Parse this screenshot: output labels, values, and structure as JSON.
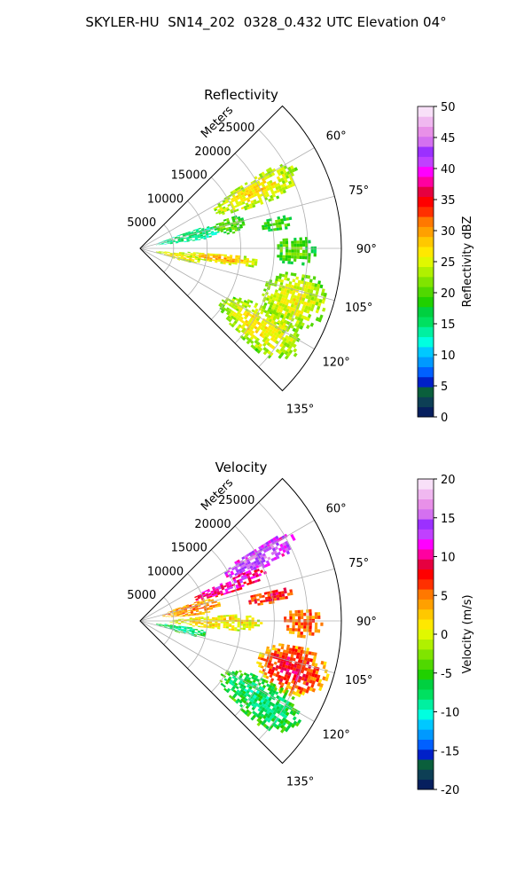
{
  "figure": {
    "title": "SKYLER-HU  SN14_202  0328_0.432 UTC Elevation 04°"
  },
  "chart_data": [
    {
      "type": "heatmap",
      "projection": "polar-sector",
      "title": "Reflectivity",
      "radial_label": "Meters",
      "theta_range_deg": [
        45,
        135
      ],
      "radial_range_m": [
        0,
        30000
      ],
      "radial_tick_labels": [
        "5000",
        "10000",
        "15000",
        "20000",
        "25000"
      ],
      "radial_tick_values": [
        5000,
        10000,
        15000,
        20000,
        25000
      ],
      "theta_tick_labels": [
        "60°",
        "75°",
        "90°",
        "105°",
        "120°",
        "135°"
      ],
      "theta_tick_values": [
        60,
        75,
        90,
        105,
        120,
        135
      ],
      "grid": true,
      "colorbar": {
        "label": "Reflectivity dBZ",
        "range": [
          0,
          50
        ],
        "tick_labels": [
          "0",
          "5",
          "10",
          "15",
          "20",
          "25",
          "30",
          "35",
          "40",
          "45",
          "50"
        ],
        "tick_values": [
          0,
          5,
          10,
          15,
          20,
          25,
          30,
          35,
          40,
          45,
          50
        ],
        "colors": [
          "#061f5e",
          "#0d3f55",
          "#0a5f3c",
          "#0020c8",
          "#0060ff",
          "#0099ff",
          "#00c8ff",
          "#00ffe0",
          "#00f0a0",
          "#00e060",
          "#00d040",
          "#20d000",
          "#50d800",
          "#80e400",
          "#b0f000",
          "#e0f800",
          "#ffe800",
          "#ffc800",
          "#ffa000",
          "#ff7800",
          "#ff3000",
          "#ff0000",
          "#e60040",
          "#ff00a0",
          "#ff00ff",
          "#c040ff",
          "#9b30ff",
          "#d470f0",
          "#e890e8",
          "#f0b8f0",
          "#f8e0f8"
        ]
      },
      "features": [
        {
          "theta": [
            57,
            70
          ],
          "r": [
            12000,
            26000
          ],
          "value": 22,
          "core": 27
        },
        {
          "theta": [
            70,
            82
          ],
          "r": [
            2000,
            12000
          ],
          "value": 13,
          "core": 16
        },
        {
          "theta": [
            70,
            80
          ],
          "r": [
            11000,
            16000
          ],
          "value": 18,
          "core": 21
        },
        {
          "theta": [
            76,
            82
          ],
          "r": [
            18000,
            23000
          ],
          "value": 18,
          "core": 20
        },
        {
          "theta": [
            93,
            100
          ],
          "r": [
            5000,
            18000
          ],
          "value": 23,
          "core": 30
        },
        {
          "theta": [
            96,
            106
          ],
          "r": [
            2000,
            9000
          ],
          "value": 23,
          "core": 27
        },
        {
          "theta": [
            98,
            118
          ],
          "r": [
            19000,
            29000
          ],
          "value": 21,
          "core": 26
        },
        {
          "theta": [
            114,
            131
          ],
          "r": [
            14000,
            28000
          ],
          "value": 21,
          "core": 27
        },
        {
          "theta": [
            85,
            96
          ],
          "r": [
            20000,
            26000
          ],
          "value": 18,
          "core": 21
        }
      ]
    },
    {
      "type": "heatmap",
      "projection": "polar-sector",
      "title": "Velocity",
      "radial_label": "Meters",
      "theta_range_deg": [
        45,
        135
      ],
      "radial_range_m": [
        0,
        30000
      ],
      "radial_tick_labels": [
        "5000",
        "10000",
        "15000",
        "20000",
        "25000"
      ],
      "radial_tick_values": [
        5000,
        10000,
        15000,
        20000,
        25000
      ],
      "theta_tick_labels": [
        "60°",
        "75°",
        "90°",
        "105°",
        "120°",
        "135°"
      ],
      "theta_tick_values": [
        60,
        75,
        90,
        105,
        120,
        135
      ],
      "grid": true,
      "colorbar": {
        "label": "Velocity (m/s)",
        "range": [
          -20,
          20
        ],
        "tick_labels": [
          "-20",
          "-15",
          "-10",
          "-5",
          "0",
          "5",
          "10",
          "15",
          "20"
        ],
        "tick_values": [
          -20,
          -15,
          -10,
          -5,
          0,
          5,
          10,
          15,
          20
        ],
        "colors": [
          "#061f5e",
          "#0d3f55",
          "#0a5f3c",
          "#0020c8",
          "#0060ff",
          "#0099ff",
          "#00c8ff",
          "#00ffe0",
          "#00f0a0",
          "#00e060",
          "#00d040",
          "#20d000",
          "#50d800",
          "#80e400",
          "#b0f000",
          "#e0f800",
          "#ffe800",
          "#ffc800",
          "#ffa000",
          "#ff7800",
          "#ff3000",
          "#ff0000",
          "#e60040",
          "#ff00a0",
          "#ff00ff",
          "#c040ff",
          "#9b30ff",
          "#d470f0",
          "#e890e8",
          "#f0b8f0",
          "#f8e0f8"
        ]
      },
      "features": [
        {
          "theta": [
            57,
            66
          ],
          "r": [
            14000,
            26000
          ],
          "value": 12,
          "core": 15
        },
        {
          "theta": [
            64,
            72
          ],
          "r": [
            8000,
            20000
          ],
          "value": 9,
          "core": 11
        },
        {
          "theta": [
            70,
            84
          ],
          "r": [
            3000,
            12000
          ],
          "value": 3,
          "core": 5
        },
        {
          "theta": [
            76,
            82
          ],
          "r": [
            16000,
            23000
          ],
          "value": 6,
          "core": 8
        },
        {
          "theta": [
            85,
            96
          ],
          "r": [
            4000,
            18000
          ],
          "value": 0,
          "core": 2
        },
        {
          "theta": [
            96,
            106
          ],
          "r": [
            2000,
            10000
          ],
          "value": -6,
          "core": -9
        },
        {
          "theta": [
            98,
            116
          ],
          "r": [
            18000,
            29000
          ],
          "value": 2,
          "core": 9
        },
        {
          "theta": [
            114,
            131
          ],
          "r": [
            14000,
            28000
          ],
          "value": -5,
          "core": -8
        },
        {
          "theta": [
            85,
            95
          ],
          "r": [
            21000,
            27000
          ],
          "value": 4,
          "core": 6
        }
      ]
    }
  ]
}
